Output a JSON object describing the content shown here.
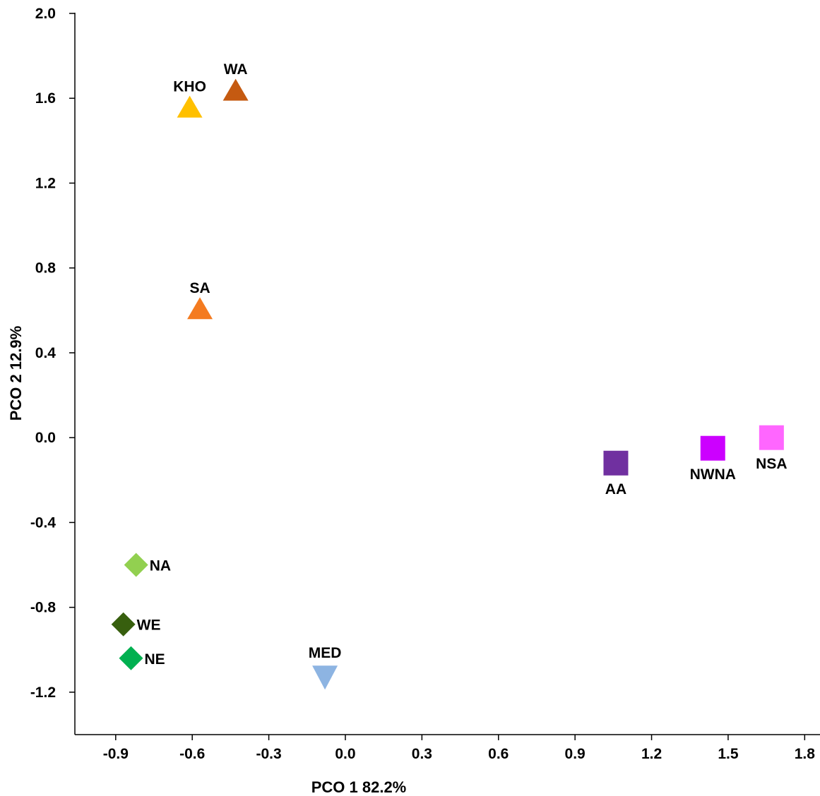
{
  "chart_data": {
    "type": "scatter",
    "title": "",
    "xlabel": "PCO 1 82.2%",
    "ylabel": "PCO 2 12.9%",
    "xlim": [
      -1.06,
      1.86
    ],
    "ylim": [
      -1.4,
      2.0
    ],
    "xticks": [
      -0.9,
      -0.6,
      -0.3,
      0.0,
      0.3,
      0.6,
      0.9,
      1.2,
      1.5,
      1.8
    ],
    "xtick_labels": [
      "-0.9",
      "-0.6",
      "-0.3",
      "0.0",
      "0.3",
      "0.6",
      "0.9",
      "1.2",
      "1.5",
      "1.8"
    ],
    "yticks": [
      -1.2,
      -0.8,
      -0.4,
      0.0,
      0.4,
      0.8,
      1.2,
      1.6,
      2.0
    ],
    "ytick_labels": [
      "-1.2",
      "-0.8",
      "-0.4",
      "0.0",
      "0.4",
      "0.8",
      "1.2",
      "1.6",
      "2.0"
    ],
    "grid": false,
    "legend": false,
    "points": [
      {
        "label": "WA",
        "x": -0.43,
        "y": 1.63,
        "marker": "triangle-up",
        "color": "#C55A11",
        "label_pos": "above"
      },
      {
        "label": "KHO",
        "x": -0.61,
        "y": 1.55,
        "marker": "triangle-up",
        "color": "#FFC000",
        "label_pos": "above"
      },
      {
        "label": "SA",
        "x": -0.57,
        "y": 0.6,
        "marker": "triangle-up",
        "color": "#F47B20",
        "label_pos": "above"
      },
      {
        "label": "AA",
        "x": 1.06,
        "y": -0.12,
        "marker": "square",
        "color": "#7030A0",
        "label_pos": "below"
      },
      {
        "label": "NWNA",
        "x": 1.44,
        "y": -0.05,
        "marker": "square",
        "color": "#CC00FF",
        "label_pos": "below"
      },
      {
        "label": "NSA",
        "x": 1.67,
        "y": 0.0,
        "marker": "square",
        "color": "#FF66FF",
        "label_pos": "below"
      },
      {
        "label": "NA",
        "x": -0.82,
        "y": -0.6,
        "marker": "diamond",
        "color": "#92D050",
        "label_pos": "right"
      },
      {
        "label": "WE",
        "x": -0.87,
        "y": -0.88,
        "marker": "diamond",
        "color": "#375F0E",
        "label_pos": "right"
      },
      {
        "label": "NE",
        "x": -0.84,
        "y": -1.04,
        "marker": "diamond",
        "color": "#00B050",
        "label_pos": "right"
      },
      {
        "label": "MED",
        "x": -0.08,
        "y": -1.12,
        "marker": "triangle-down",
        "color": "#8DB4E2",
        "label_pos": "above"
      }
    ]
  }
}
